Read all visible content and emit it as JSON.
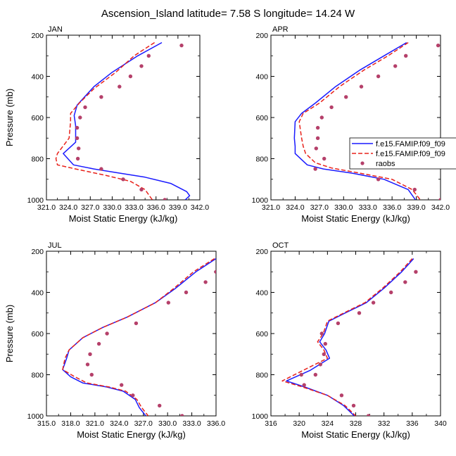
{
  "figure": {
    "title": "Ascension_Island  latitude= 7.58 S longitude= 14.24 W"
  },
  "legend": {
    "entries": [
      {
        "label": "f.e15.FAMIP.f09_f09",
        "style": "solid",
        "color": "#1a1aff"
      },
      {
        "label": "f.e15.FAMIP.f09_f09",
        "style": "dashed",
        "color": "#e8221b"
      },
      {
        "label": "raobs",
        "style": "dots",
        "color": "#b5406a"
      }
    ]
  },
  "colors": {
    "model_1": "#1a1aff",
    "model_2": "#e8221b",
    "raobs": "#b5406a"
  },
  "chart_data": [
    {
      "type": "line",
      "panel": "JAN",
      "xlabel": "Moist Static Energy (kJ/kg)",
      "ylabel": "Pressure (mb)",
      "xlim": [
        321.0,
        342.0
      ],
      "ylim": [
        1000,
        200
      ],
      "xticks": [
        "321.0",
        "324.0",
        "327.0",
        "330.0",
        "333.0",
        "336.0",
        "339.0",
        "342.0"
      ],
      "xtick_values": [
        321,
        324,
        327,
        330,
        333,
        336,
        339,
        342
      ],
      "yticks": [
        "200",
        "400",
        "600",
        "800",
        "1000"
      ],
      "ytick_values": [
        200,
        400,
        600,
        800,
        1000
      ],
      "legend": false,
      "series": [
        {
          "style": "solid",
          "color": "#1a1aff",
          "x": [
            336.8,
            333.5,
            330.0,
            327.5,
            325.2,
            324.8,
            325.0,
            325.0,
            325.0,
            323.3,
            324.7,
            327.5,
            331.0,
            334.5,
            338.0,
            340.2,
            340.6,
            340.0
          ],
          "y": [
            236,
            300,
            380,
            450,
            540,
            590,
            640,
            690,
            720,
            775,
            830,
            850,
            870,
            890,
            920,
            960,
            980,
            1000
          ]
        },
        {
          "style": "dashed",
          "color": "#e8221b",
          "x": [
            335.8,
            333.0,
            330.5,
            327.5,
            325.5,
            324.3,
            324.3,
            324.1,
            322.5,
            322.3,
            322.5,
            325.0,
            329.0,
            332.5,
            334.5,
            335.5
          ],
          "y": [
            236,
            300,
            380,
            460,
            530,
            580,
            620,
            700,
            775,
            800,
            830,
            850,
            880,
            910,
            950,
            1000
          ]
        },
        {
          "style": "dots",
          "color": "#b5406a",
          "x": [
            339.5,
            335.0,
            334.0,
            332.5,
            331.0,
            328.5,
            326.3,
            325.6,
            325.2,
            325.2,
            325.4,
            325.3,
            328.5,
            331.5,
            334.0,
            337.2
          ],
          "y": [
            250,
            300,
            350,
            400,
            450,
            500,
            550,
            600,
            650,
            700,
            750,
            800,
            850,
            900,
            950,
            1000
          ]
        }
      ]
    },
    {
      "type": "line",
      "panel": "APR",
      "xlabel": "Moist Static Energy (kJ/kg)",
      "ylabel": "",
      "xlim": [
        321.0,
        342.0
      ],
      "ylim": [
        1000,
        200
      ],
      "xticks": [
        "321.0",
        "324.0",
        "327.0",
        "330.0",
        "333.0",
        "336.0",
        "339.0",
        "342.0"
      ],
      "xtick_values": [
        321,
        324,
        327,
        330,
        333,
        336,
        339,
        342
      ],
      "yticks": [
        "200",
        "400",
        "600",
        "800",
        "1000"
      ],
      "ytick_values": [
        200,
        400,
        600,
        800,
        1000
      ],
      "legend": true,
      "series": [
        {
          "style": "solid",
          "color": "#1a1aff",
          "x": [
            337.8,
            335.0,
            332.0,
            329.0,
            326.5,
            324.8,
            324.0,
            323.9,
            324.0,
            324.0,
            325.5,
            327.5,
            331.0,
            335.0,
            338.0,
            338.9
          ],
          "y": [
            236,
            300,
            370,
            450,
            530,
            580,
            620,
            700,
            740,
            775,
            830,
            850,
            870,
            900,
            950,
            1000
          ]
        },
        {
          "style": "dashed",
          "color": "#e8221b",
          "x": [
            338.0,
            335.5,
            332.5,
            329.5,
            327.0,
            325.0,
            324.5,
            324.8,
            325.0,
            325.3,
            326.5,
            328.5,
            332.0,
            336.0,
            338.5,
            339.5
          ],
          "y": [
            236,
            300,
            370,
            450,
            530,
            580,
            620,
            700,
            740,
            775,
            820,
            845,
            870,
            900,
            950,
            1000
          ]
        },
        {
          "style": "dots",
          "color": "#b5406a",
          "x": [
            341.7,
            337.7,
            336.4,
            334.3,
            332.2,
            330.3,
            328.5,
            327.3,
            326.8,
            326.8,
            326.6,
            327.6,
            326.5,
            334.3,
            338.8,
            342.0
          ],
          "y": [
            250,
            300,
            350,
            400,
            450,
            500,
            550,
            600,
            650,
            700,
            750,
            800,
            850,
            900,
            950,
            1000
          ]
        }
      ]
    },
    {
      "type": "line",
      "panel": "JUL",
      "xlabel": "Moist Static Energy (kJ/kg)",
      "ylabel": "Pressure (mb)",
      "xlim": [
        315.0,
        336.0
      ],
      "ylim": [
        1000,
        200
      ],
      "xticks": [
        "315.0",
        "318.0",
        "321.0",
        "324.0",
        "327.0",
        "330.0",
        "333.0",
        "336.0"
      ],
      "xtick_values": [
        315,
        318,
        321,
        324,
        327,
        330,
        333,
        336
      ],
      "yticks": [
        "200",
        "400",
        "600",
        "800",
        "1000"
      ],
      "ytick_values": [
        200,
        400,
        600,
        800,
        1000
      ],
      "legend": false,
      "series": [
        {
          "style": "solid",
          "color": "#1a1aff",
          "x": [
            336.0,
            333.5,
            331.0,
            328.5,
            325.0,
            322.0,
            319.5,
            317.8,
            317.5,
            317.0,
            318.0,
            319.5,
            322.5,
            324.5,
            326.0,
            326.5,
            327.3
          ],
          "y": [
            236,
            300,
            380,
            450,
            520,
            570,
            620,
            680,
            720,
            775,
            810,
            840,
            860,
            880,
            920,
            960,
            1000
          ]
        },
        {
          "style": "dashed",
          "color": "#e8221b",
          "x": [
            335.8,
            333.2,
            330.8,
            328.5,
            325.0,
            322.0,
            319.5,
            317.8,
            317.3,
            317.0,
            318.5,
            320.0,
            322.8,
            324.8,
            326.2,
            326.8,
            327.6
          ],
          "y": [
            236,
            300,
            380,
            450,
            520,
            570,
            620,
            680,
            720,
            775,
            810,
            840,
            860,
            880,
            920,
            960,
            1000
          ]
        },
        {
          "style": "dots",
          "color": "#b5406a",
          "x": [
            336.0,
            334.7,
            332.3,
            330.1,
            326.1,
            322.5,
            321.5,
            320.4,
            320.1,
            320.6,
            324.3,
            325.7,
            329.0,
            331.8
          ],
          "y": [
            300,
            350,
            400,
            450,
            550,
            600,
            650,
            700,
            750,
            800,
            850,
            900,
            950,
            1000
          ]
        }
      ]
    },
    {
      "type": "line",
      "panel": "OCT",
      "xlabel": "Moist Static Energy (kJ/kg)",
      "ylabel": "",
      "xlim": [
        316,
        340
      ],
      "ylim": [
        1000,
        200
      ],
      "xticks": [
        "316",
        "320",
        "324",
        "328",
        "332",
        "336",
        "340"
      ],
      "xtick_values": [
        316,
        320,
        324,
        328,
        332,
        336,
        340
      ],
      "yticks": [
        "200",
        "400",
        "600",
        "800",
        "1000"
      ],
      "ytick_values": [
        200,
        400,
        600,
        800,
        1000
      ],
      "legend": false,
      "series": [
        {
          "style": "solid",
          "color": "#1a1aff",
          "x": [
            336.2,
            334.5,
            332.0,
            329.5,
            326.5,
            324.2,
            323.6,
            322.9,
            323.8,
            324.3,
            321.5,
            318.2,
            320.8,
            324.0,
            326.3,
            327.8
          ],
          "y": [
            236,
            300,
            380,
            450,
            500,
            540,
            600,
            640,
            680,
            720,
            780,
            830,
            860,
            900,
            950,
            1000
          ]
        },
        {
          "style": "dashed",
          "color": "#e8221b",
          "x": [
            336.0,
            334.3,
            331.8,
            329.3,
            326.3,
            324.0,
            323.4,
            322.6,
            323.5,
            324.0,
            320.5,
            317.6,
            320.5,
            324.0,
            326.5,
            328.0
          ],
          "y": [
            236,
            300,
            380,
            450,
            500,
            540,
            600,
            640,
            680,
            720,
            780,
            830,
            860,
            900,
            950,
            1000
          ]
        },
        {
          "style": "dots",
          "color": "#b5406a",
          "x": [
            336.5,
            335.0,
            333.0,
            330.5,
            328.5,
            325.5,
            323.2,
            323.7,
            323.5,
            323.0,
            322.3,
            320.3,
            320.7,
            326.0,
            327.7,
            329.8
          ],
          "y": [
            300,
            350,
            400,
            450,
            500,
            550,
            600,
            650,
            700,
            750,
            800,
            800,
            850,
            900,
            950,
            1000
          ]
        }
      ]
    }
  ]
}
